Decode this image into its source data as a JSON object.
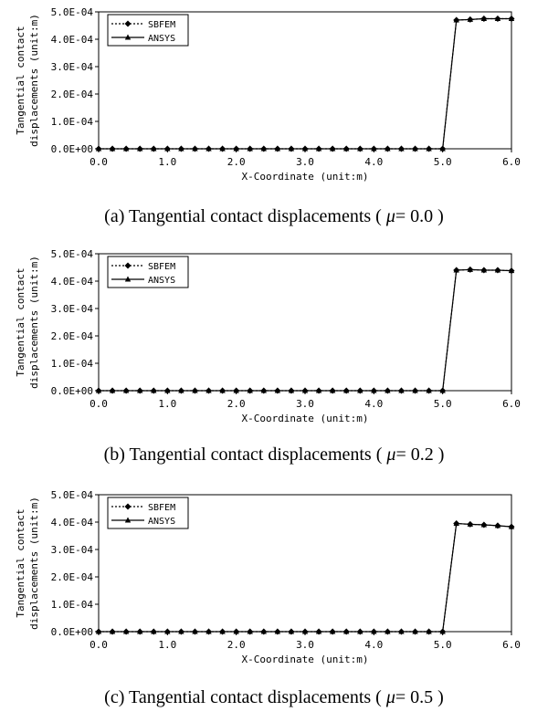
{
  "chart_data": [
    {
      "type": "line",
      "caption_prefix": "(a) Tangential contact displacements ( ",
      "caption_symbol": "μ",
      "caption_suffix": "= 0.0 )",
      "xlabel": "X-Coordinate (unit:m)",
      "ylabel_lines": [
        "Tangential contact",
        "displacements (unit:m)"
      ],
      "xlim": [
        0,
        6
      ],
      "ylim": [
        0,
        0.0005
      ],
      "x_ticks": [
        "0.0",
        "1.0",
        "2.0",
        "3.0",
        "4.0",
        "5.0",
        "6.0"
      ],
      "y_ticks": [
        "0.0E+00",
        "1.0E-04",
        "2.0E-04",
        "3.0E-04",
        "4.0E-04",
        "5.0E-04"
      ],
      "legend_position": "top-left",
      "series": [
        {
          "name": "SBFEM",
          "style": "dotted",
          "marker": "diamond",
          "x": [
            0.0,
            0.2,
            0.4,
            0.6,
            0.8,
            1.0,
            1.2,
            1.4,
            1.6,
            1.8,
            2.0,
            2.2,
            2.4,
            2.6,
            2.8,
            3.0,
            3.2,
            3.4,
            3.6,
            3.8,
            4.0,
            4.2,
            4.4,
            4.6,
            4.8,
            5.0,
            5.2,
            5.4,
            5.6,
            5.8,
            6.0
          ],
          "y": [
            0,
            0,
            0,
            0,
            0,
            0,
            0,
            0,
            0,
            0,
            0,
            0,
            0,
            0,
            0,
            0,
            0,
            0,
            0,
            0,
            0,
            0,
            0,
            0,
            0,
            0,
            0.00047,
            0.000472,
            0.000475,
            0.000475,
            0.000475
          ]
        },
        {
          "name": "ANSYS",
          "style": "solid",
          "marker": "triangle",
          "x": [
            0.0,
            0.2,
            0.4,
            0.6,
            0.8,
            1.0,
            1.2,
            1.4,
            1.6,
            1.8,
            2.0,
            2.2,
            2.4,
            2.6,
            2.8,
            3.0,
            3.2,
            3.4,
            3.6,
            3.8,
            4.0,
            4.2,
            4.4,
            4.6,
            4.8,
            5.0,
            5.2,
            5.4,
            5.6,
            5.8,
            6.0
          ],
          "y": [
            0,
            0,
            0,
            0,
            0,
            0,
            0,
            0,
            0,
            0,
            0,
            0,
            0,
            0,
            0,
            0,
            0,
            0,
            0,
            0,
            0,
            0,
            0,
            0,
            0,
            0,
            0.00047,
            0.000472,
            0.000475,
            0.000475,
            0.000475
          ]
        }
      ]
    },
    {
      "type": "line",
      "caption_prefix": "(b) Tangential contact displacements ( ",
      "caption_symbol": "μ",
      "caption_suffix": "= 0.2 )",
      "xlabel": "X-Coordinate (unit:m)",
      "ylabel_lines": [
        "Tangential contact",
        "displacements (unit:m)"
      ],
      "xlim": [
        0,
        6
      ],
      "ylim": [
        0,
        0.0005
      ],
      "x_ticks": [
        "0.0",
        "1.0",
        "2.0",
        "3.0",
        "4.0",
        "5.0",
        "6.0"
      ],
      "y_ticks": [
        "0.0E+00",
        "1.0E-04",
        "2.0E-04",
        "3.0E-04",
        "4.0E-04",
        "5.0E-04"
      ],
      "legend_position": "top-left",
      "series": [
        {
          "name": "SBFEM",
          "style": "dotted",
          "marker": "diamond",
          "x": [
            0.0,
            0.2,
            0.4,
            0.6,
            0.8,
            1.0,
            1.2,
            1.4,
            1.6,
            1.8,
            2.0,
            2.2,
            2.4,
            2.6,
            2.8,
            3.0,
            3.2,
            3.4,
            3.6,
            3.8,
            4.0,
            4.2,
            4.4,
            4.6,
            4.8,
            5.0,
            5.2,
            5.4,
            5.6,
            5.8,
            6.0
          ],
          "y": [
            0,
            0,
            0,
            0,
            0,
            0,
            0,
            0,
            0,
            0,
            0,
            0,
            0,
            0,
            0,
            0,
            0,
            0,
            0,
            0,
            0,
            0,
            0,
            0,
            0,
            0,
            0.00044,
            0.000442,
            0.00044,
            0.00044,
            0.000438
          ]
        },
        {
          "name": "ANSYS",
          "style": "solid",
          "marker": "triangle",
          "x": [
            0.0,
            0.2,
            0.4,
            0.6,
            0.8,
            1.0,
            1.2,
            1.4,
            1.6,
            1.8,
            2.0,
            2.2,
            2.4,
            2.6,
            2.8,
            3.0,
            3.2,
            3.4,
            3.6,
            3.8,
            4.0,
            4.2,
            4.4,
            4.6,
            4.8,
            5.0,
            5.2,
            5.4,
            5.6,
            5.8,
            6.0
          ],
          "y": [
            0,
            0,
            0,
            0,
            0,
            0,
            0,
            0,
            0,
            0,
            0,
            0,
            0,
            0,
            0,
            0,
            0,
            0,
            0,
            0,
            0,
            0,
            0,
            0,
            0,
            0,
            0.00044,
            0.000442,
            0.00044,
            0.00044,
            0.000438
          ]
        }
      ]
    },
    {
      "type": "line",
      "caption_prefix": "(c) Tangential contact displacements ( ",
      "caption_symbol": "μ",
      "caption_suffix": "= 0.5 )",
      "xlabel": "X-Coordinate (unit:m)",
      "ylabel_lines": [
        "Tangential contact",
        "displacements (unit:m)"
      ],
      "xlim": [
        0,
        6
      ],
      "ylim": [
        0,
        0.0005
      ],
      "x_ticks": [
        "0.0",
        "1.0",
        "2.0",
        "3.0",
        "4.0",
        "5.0",
        "6.0"
      ],
      "y_ticks": [
        "0.0E+00",
        "1.0E-04",
        "2.0E-04",
        "3.0E-04",
        "4.0E-04",
        "5.0E-04"
      ],
      "legend_position": "top-left",
      "series": [
        {
          "name": "SBFEM",
          "style": "dotted",
          "marker": "diamond",
          "x": [
            0.0,
            0.2,
            0.4,
            0.6,
            0.8,
            1.0,
            1.2,
            1.4,
            1.6,
            1.8,
            2.0,
            2.2,
            2.4,
            2.6,
            2.8,
            3.0,
            3.2,
            3.4,
            3.6,
            3.8,
            4.0,
            4.2,
            4.4,
            4.6,
            4.8,
            5.0,
            5.2,
            5.4,
            5.6,
            5.8,
            6.0
          ],
          "y": [
            0,
            0,
            0,
            0,
            0,
            0,
            0,
            0,
            0,
            0,
            0,
            0,
            0,
            0,
            0,
            0,
            0,
            0,
            0,
            0,
            0,
            0,
            0,
            0,
            0,
            0,
            0.000395,
            0.000392,
            0.00039,
            0.000387,
            0.000383
          ]
        },
        {
          "name": "ANSYS",
          "style": "solid",
          "marker": "triangle",
          "x": [
            0.0,
            0.2,
            0.4,
            0.6,
            0.8,
            1.0,
            1.2,
            1.4,
            1.6,
            1.8,
            2.0,
            2.2,
            2.4,
            2.6,
            2.8,
            3.0,
            3.2,
            3.4,
            3.6,
            3.8,
            4.0,
            4.2,
            4.4,
            4.6,
            4.8,
            5.0,
            5.2,
            5.4,
            5.6,
            5.8,
            6.0
          ],
          "y": [
            0,
            0,
            0,
            0,
            0,
            0,
            0,
            0,
            0,
            0,
            0,
            0,
            0,
            0,
            0,
            0,
            0,
            0,
            0,
            0,
            0,
            0,
            0,
            0,
            0,
            0,
            0.000395,
            0.000392,
            0.00039,
            0.000387,
            0.000383
          ]
        }
      ]
    }
  ]
}
